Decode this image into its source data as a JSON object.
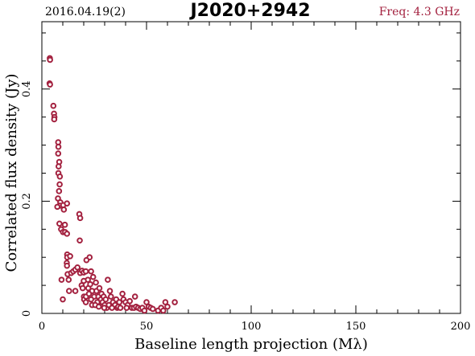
{
  "header": {
    "date": "2016.04.19(2)",
    "source": "J2020+2942",
    "freq": "Freq: 4.3 GHz"
  },
  "chart_data": {
    "type": "scatter",
    "xlabel": "Baseline length projection (Mλ)",
    "ylabel": "Correlated flux density (Jy)",
    "xlim": [
      0,
      200
    ],
    "ylim": [
      0,
      0.52
    ],
    "xticks": [
      0,
      50,
      100,
      150,
      200
    ],
    "yticks": [
      0,
      0.2,
      0.4
    ],
    "ytick_labels": [
      "0",
      "0.2",
      "0.4"
    ],
    "marker_color": "#a3213f",
    "points": [
      [
        3.8,
        0.455
      ],
      [
        3.9,
        0.452
      ],
      [
        3.7,
        0.41
      ],
      [
        3.9,
        0.408
      ],
      [
        5.5,
        0.37
      ],
      [
        5.8,
        0.356
      ],
      [
        6.0,
        0.35
      ],
      [
        5.9,
        0.346
      ],
      [
        7.8,
        0.305
      ],
      [
        7.9,
        0.297
      ],
      [
        7.8,
        0.285
      ],
      [
        8.3,
        0.27
      ],
      [
        8.0,
        0.262
      ],
      [
        7.9,
        0.25
      ],
      [
        8.6,
        0.244
      ],
      [
        8.5,
        0.23
      ],
      [
        8.2,
        0.218
      ],
      [
        7.7,
        0.205
      ],
      [
        8.8,
        0.198
      ],
      [
        8.5,
        0.192
      ],
      [
        10.2,
        0.193
      ],
      [
        10.5,
        0.185
      ],
      [
        12.0,
        0.196
      ],
      [
        7.4,
        0.19
      ],
      [
        8.4,
        0.16
      ],
      [
        9.2,
        0.15
      ],
      [
        10.1,
        0.145
      ],
      [
        11.1,
        0.145
      ],
      [
        11.0,
        0.158
      ],
      [
        12.0,
        0.142
      ],
      [
        17.9,
        0.177
      ],
      [
        18.3,
        0.17
      ],
      [
        18.1,
        0.13
      ],
      [
        12.1,
        0.105
      ],
      [
        12.1,
        0.1
      ],
      [
        11.9,
        0.09
      ],
      [
        12.0,
        0.085
      ],
      [
        13.5,
        0.102
      ],
      [
        12.3,
        0.07
      ],
      [
        14.0,
        0.072
      ],
      [
        12.8,
        0.06
      ],
      [
        15.0,
        0.075
      ],
      [
        16.0,
        0.078
      ],
      [
        17.0,
        0.082
      ],
      [
        18.3,
        0.072
      ],
      [
        19.2,
        0.076
      ],
      [
        20.0,
        0.073
      ],
      [
        21.0,
        0.075
      ],
      [
        22.8,
        0.1
      ],
      [
        21.3,
        0.095
      ],
      [
        23.5,
        0.075
      ],
      [
        24.5,
        0.065
      ],
      [
        22.0,
        0.06
      ],
      [
        20.0,
        0.058
      ],
      [
        9.4,
        0.06
      ],
      [
        16.0,
        0.04
      ],
      [
        19.0,
        0.05
      ],
      [
        20.1,
        0.03
      ],
      [
        20.2,
        0.025
      ],
      [
        21.1,
        0.03
      ],
      [
        22.2,
        0.045
      ],
      [
        23.1,
        0.052
      ],
      [
        24.0,
        0.04
      ],
      [
        25.0,
        0.03
      ],
      [
        25.8,
        0.055
      ],
      [
        26.1,
        0.04
      ],
      [
        27.0,
        0.03
      ],
      [
        28.2,
        0.025
      ],
      [
        29.0,
        0.02
      ],
      [
        30.0,
        0.015
      ],
      [
        31.0,
        0.01
      ],
      [
        31.5,
        0.06
      ],
      [
        32.5,
        0.04
      ],
      [
        33.0,
        0.03
      ],
      [
        34.0,
        0.02
      ],
      [
        35.0,
        0.015
      ],
      [
        36.0,
        0.01
      ],
      [
        36.5,
        0.012
      ],
      [
        37.5,
        0.01
      ],
      [
        38.5,
        0.035
      ],
      [
        39.0,
        0.025
      ],
      [
        40.0,
        0.02
      ],
      [
        41.0,
        0.015
      ],
      [
        42.0,
        0.022
      ],
      [
        43.0,
        0.01
      ],
      [
        44.0,
        0.01
      ],
      [
        44.5,
        0.03
      ],
      [
        45.0,
        0.012
      ],
      [
        46.0,
        0.01
      ],
      [
        47.0,
        0.008
      ],
      [
        48.0,
        0.01
      ],
      [
        49.0,
        0.005
      ],
      [
        50.0,
        0.02
      ],
      [
        51.0,
        0.012
      ],
      [
        52.0,
        0.01
      ],
      [
        53.0,
        0.008
      ],
      [
        55.5,
        0.005
      ],
      [
        57.0,
        0.01
      ],
      [
        58.0,
        0.005
      ],
      [
        59.0,
        0.02
      ],
      [
        60.0,
        0.012
      ],
      [
        63.5,
        0.02
      ],
      [
        10.0,
        0.025
      ],
      [
        13.0,
        0.04
      ],
      [
        19.5,
        0.045
      ],
      [
        21.0,
        0.02
      ],
      [
        22.5,
        0.035
      ],
      [
        23.5,
        0.025
      ],
      [
        26.5,
        0.02
      ],
      [
        27.5,
        0.045
      ],
      [
        28.5,
        0.035
      ],
      [
        29.5,
        0.03
      ],
      [
        30.5,
        0.025
      ],
      [
        32.0,
        0.015
      ],
      [
        33.5,
        0.01
      ],
      [
        35.5,
        0.025
      ],
      [
        37.0,
        0.02
      ],
      [
        40.5,
        0.01
      ],
      [
        24.0,
        0.015
      ],
      [
        25.5,
        0.015
      ],
      [
        27.2,
        0.012
      ],
      [
        29.8,
        0.01
      ]
    ]
  }
}
